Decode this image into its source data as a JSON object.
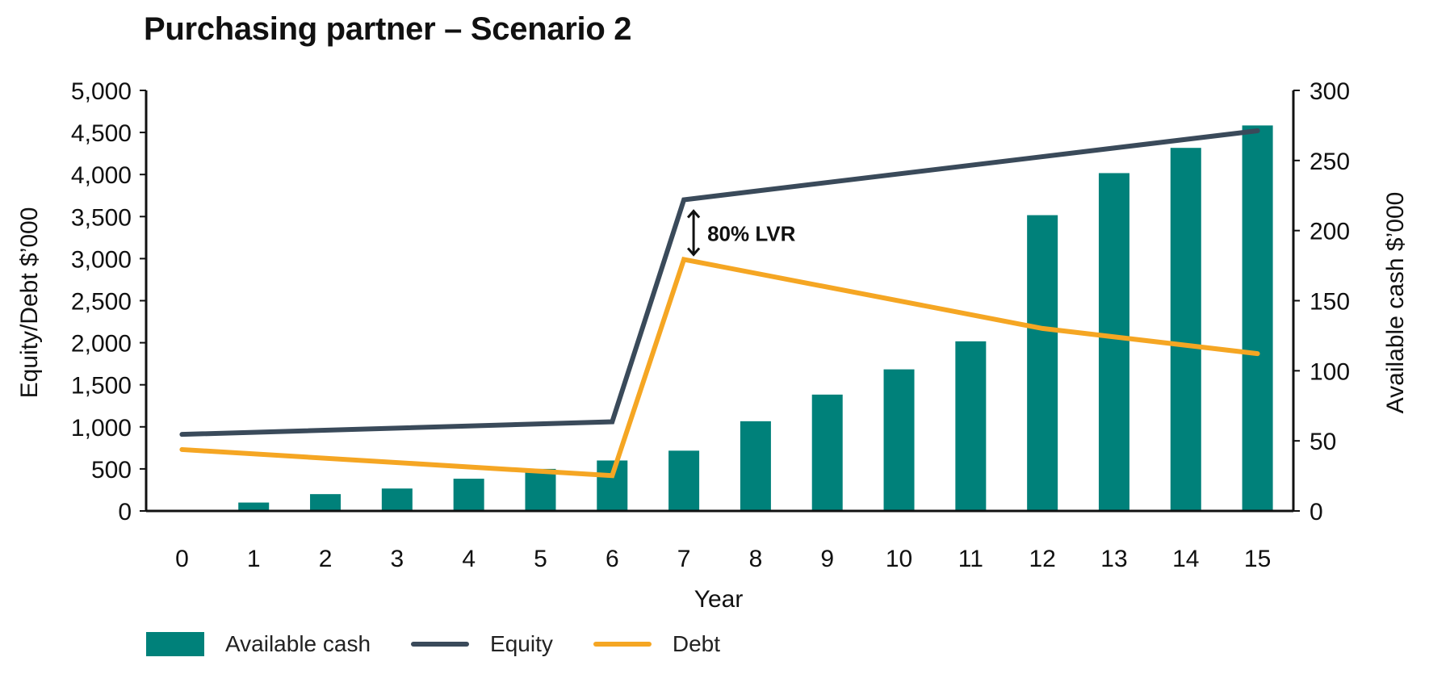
{
  "chart_data": {
    "type": "bar",
    "title": "Purchasing partner – Scenario 2",
    "xlabel": "Year",
    "ylabel": "Equity/Debt $’000",
    "ylabel_right": "Available cash $’000",
    "categories": [
      "0",
      "1",
      "2",
      "3",
      "4",
      "5",
      "6",
      "7",
      "8",
      "9",
      "10",
      "11",
      "12",
      "13",
      "14",
      "15"
    ],
    "ylim": [
      0,
      5000
    ],
    "ylim_right": [
      0,
      300
    ],
    "yticks": [
      "0",
      "500",
      "1,000",
      "1,500",
      "2,000",
      "2,500",
      "3,000",
      "3,500",
      "4,000",
      "4,500",
      "5,000"
    ],
    "yticks_right": [
      "0",
      "50",
      "100",
      "150",
      "200",
      "250",
      "300"
    ],
    "grid": false,
    "legend_position": "bottom-left",
    "series": [
      {
        "name": "Available cash",
        "kind": "bar",
        "axis": "right",
        "color": "#00817A",
        "values": [
          0,
          6,
          12,
          16,
          23,
          30,
          36,
          43,
          64,
          83,
          101,
          121,
          211,
          241,
          259,
          275
        ]
      },
      {
        "name": "Equity",
        "kind": "line",
        "axis": "left",
        "color": "#3A4A5A",
        "x": [
          0,
          6,
          7,
          15
        ],
        "values": [
          910,
          1060,
          3700,
          4520
        ]
      },
      {
        "name": "Debt",
        "kind": "line",
        "axis": "left",
        "color": "#F5A623",
        "x": [
          0,
          6,
          7,
          12,
          15
        ],
        "values": [
          730,
          420,
          2990,
          2170,
          1870
        ]
      }
    ],
    "annotation": {
      "text": "80% LVR",
      "x": 7,
      "from": 3700,
      "to": 2990
    }
  }
}
